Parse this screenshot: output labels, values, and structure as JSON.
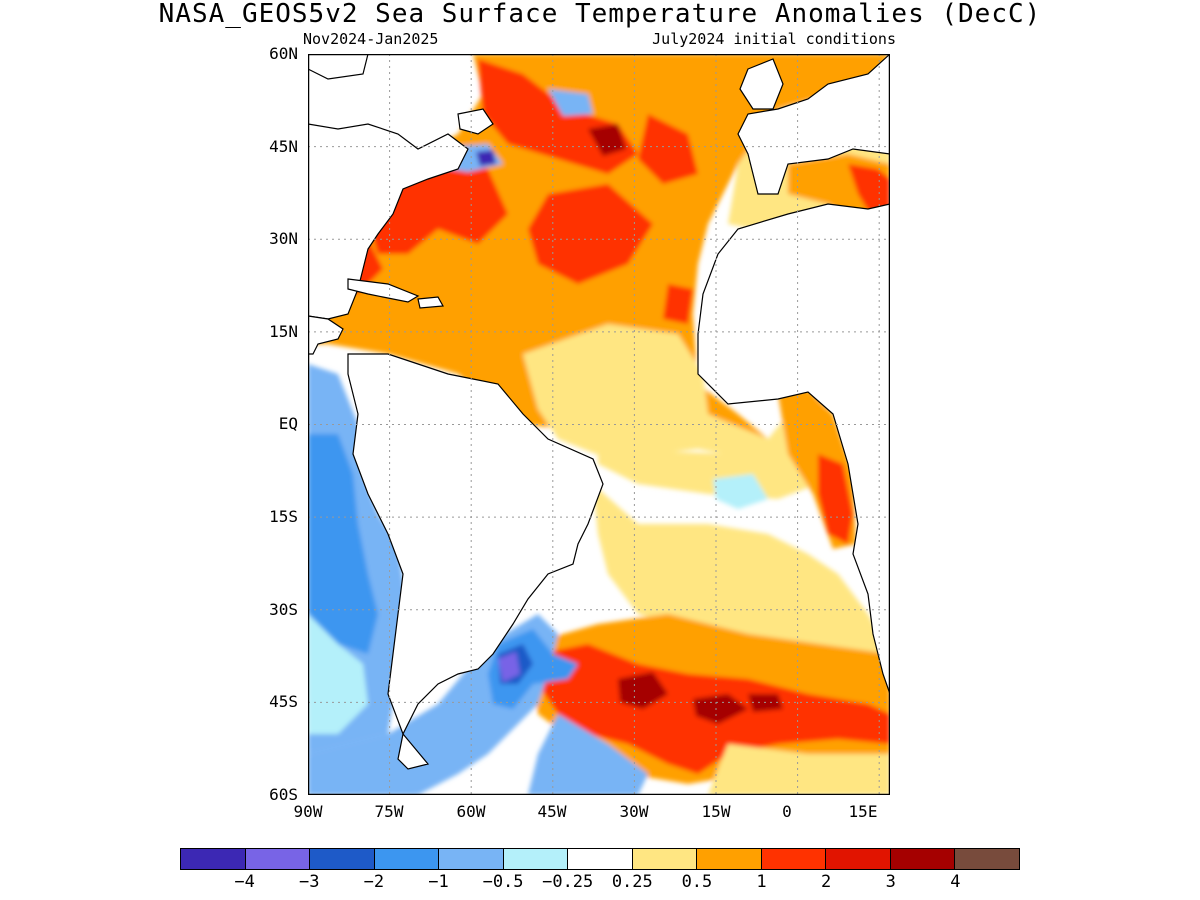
{
  "map": {
    "title": "NASA_GEOS5v2 Sea Surface Temperature Anomalies (DecC)",
    "period": "Nov2024-Jan2025",
    "initial_conditions": "July2024 initial conditions",
    "lat_labels": [
      "60N",
      "45N",
      "30N",
      "15N",
      "EQ",
      "15S",
      "30S",
      "45S",
      "60S"
    ],
    "lon_labels": [
      "90W",
      "75W",
      "60W",
      "45W",
      "30W",
      "15W",
      "0",
      "15E"
    ],
    "extent": {
      "lon": [
        -90,
        17
      ],
      "lat": [
        -60,
        60
      ]
    },
    "grid": true
  },
  "legend": {
    "colors": [
      "#3c28b4",
      "#7864e6",
      "#1e5ac8",
      "#3c96f0",
      "#78b4f5",
      "#b4f0fa",
      "#ffffff",
      "#ffe682",
      "#ffa000",
      "#ff3200",
      "#e11400",
      "#a50000",
      "#784b3c"
    ],
    "labels": [
      "−4",
      "−3",
      "−2",
      "−1",
      "−0.5",
      "−0.25",
      "0.25",
      "0.5",
      "1",
      "2",
      "3",
      "4"
    ]
  }
}
